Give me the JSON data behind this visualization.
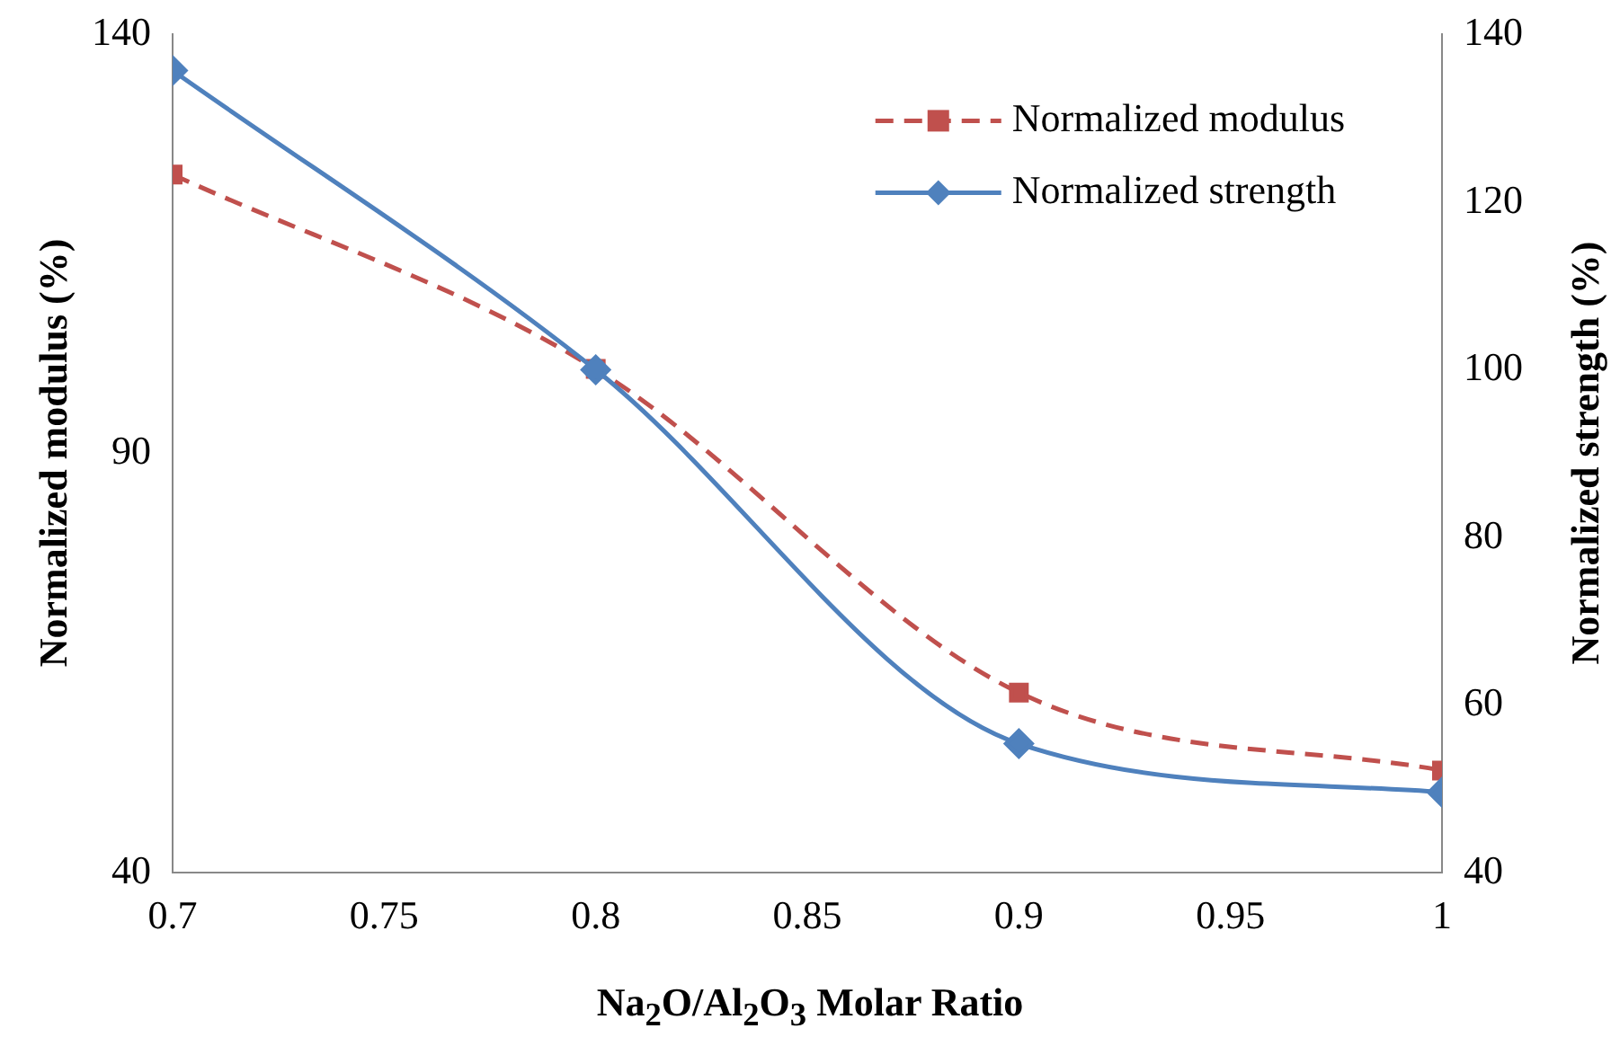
{
  "chart_data": {
    "type": "line",
    "xlabel": "Na$_{2}$O/Al$_{2}$O$_{3}$ Molar Ratio",
    "ylabel": "Normalized modulus (%)",
    "y2label": "Normalized strength (%)",
    "x": [
      0.7,
      0.8,
      0.9,
      1
    ],
    "series": [
      {
        "name": "Normalized modulus",
        "color": "#c0504d",
        "values": [
          123.3,
          100.1,
          61.5,
          52.2
        ],
        "marker": "square",
        "line_style": "dashed"
      },
      {
        "name": "Normalized strength",
        "color": "#4f81bd",
        "values": [
          135.7,
          100,
          55.4,
          49.6
        ],
        "marker": "diamond",
        "line_style": "solid",
        "axis": "y2"
      }
    ],
    "xlim": [
      0.7,
      1
    ],
    "xticks": [
      0.7,
      0.75,
      0.8,
      0.85,
      0.9,
      0.95,
      1
    ],
    "ylim": [
      40,
      140
    ],
    "yticks": [
      40,
      90,
      140
    ],
    "y2lim": [
      40,
      140
    ],
    "y2ticks": [
      40,
      60,
      80,
      100,
      120,
      140
    ],
    "grid": false,
    "legend": "top right"
  }
}
